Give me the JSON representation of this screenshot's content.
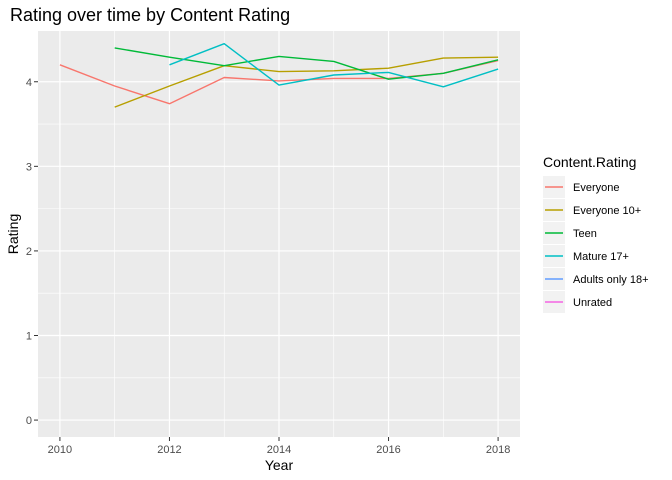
{
  "chart_data": {
    "type": "line",
    "title": "Rating over time by Content Rating",
    "xlabel": "Year",
    "ylabel": "Rating",
    "xlim": [
      2009.6,
      2018.4
    ],
    "ylim": [
      -0.2,
      4.6
    ],
    "xticks": [
      2010,
      2012,
      2014,
      2016,
      2018
    ],
    "yticks": [
      0,
      1,
      2,
      3,
      4
    ],
    "grid": true,
    "legend": {
      "title": "Content.Rating",
      "position": "right"
    },
    "series": [
      {
        "name": "Everyone",
        "color": "#F8766D",
        "x": [
          2010,
          2011,
          2012,
          2013,
          2014,
          2015,
          2016,
          2017,
          2018
        ],
        "y": [
          4.2,
          3.95,
          3.74,
          4.05,
          4.01,
          4.04,
          4.04,
          4.1,
          4.25
        ]
      },
      {
        "name": "Everyone 10+",
        "color": "#B79F00",
        "x": [
          2011,
          2012,
          2013,
          2014,
          2015,
          2016,
          2017,
          2018
        ],
        "y": [
          3.7,
          3.95,
          4.19,
          4.12,
          4.13,
          4.16,
          4.28,
          4.29
        ]
      },
      {
        "name": "Teen",
        "color": "#00BA38",
        "x": [
          2011,
          2012,
          2013,
          2014,
          2015,
          2016,
          2017,
          2018
        ],
        "y": [
          4.4,
          4.29,
          4.19,
          4.3,
          4.24,
          4.03,
          4.1,
          4.26
        ]
      },
      {
        "name": "Mature 17+",
        "color": "#00BFC4",
        "x": [
          2012,
          2013,
          2014,
          2015,
          2016,
          2017,
          2018
        ],
        "y": [
          4.2,
          4.45,
          3.96,
          4.08,
          4.11,
          3.94,
          4.15
        ]
      },
      {
        "name": "Adults only 18+",
        "color": "#619CFF",
        "x": [],
        "y": []
      },
      {
        "name": "Unrated",
        "color": "#F564E3",
        "x": [],
        "y": []
      }
    ]
  }
}
